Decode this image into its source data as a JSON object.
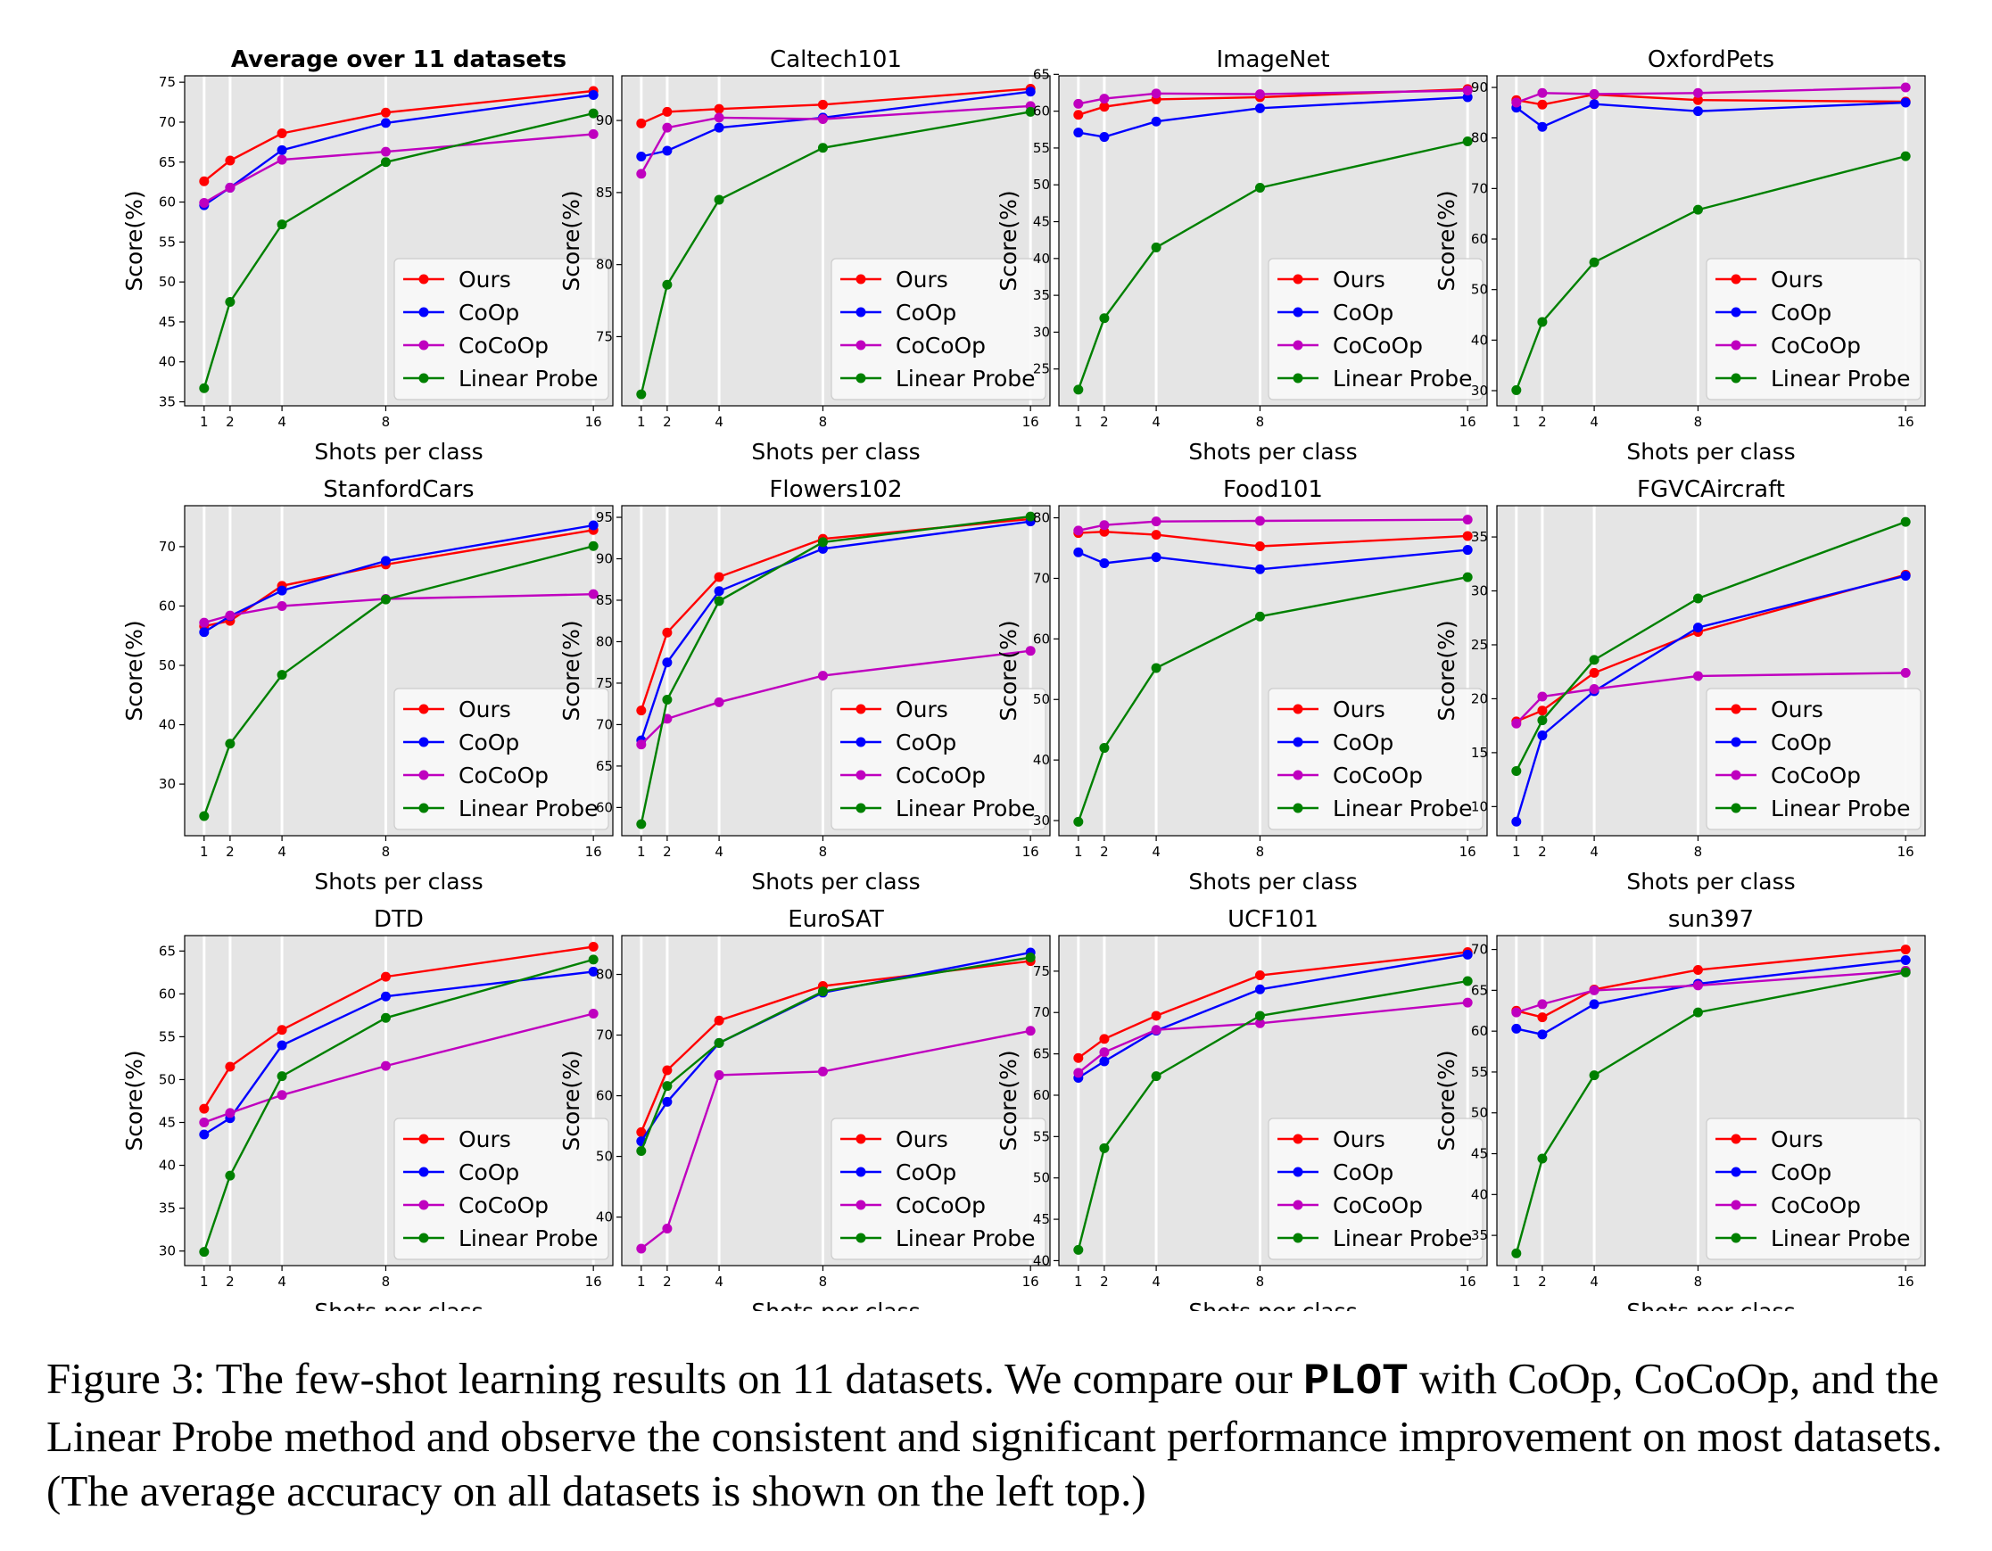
{
  "caption": {
    "pre": "Figure 3: The few-shot learning results on 11 datasets. We compare our ",
    "method": "PLOT",
    "post": " with CoOp, CoCoOp, and the Linear Probe method and observe the consistent and significant performance improvement on most datasets. (The average accuracy on all datasets is shown on the left top.)"
  },
  "colors": {
    "Ours": "#ff0000",
    "CoOp": "#0000ff",
    "CoCoOp": "#bf00bf",
    "Linear Probe": "#008000",
    "plot_bg": "#e5e5e5",
    "grid": "#ffffff"
  },
  "chart_data": [
    {
      "type": "line",
      "title": "Average over 11 datasets",
      "title_bold": true,
      "xlabel": "Shots per class",
      "ylabel": "Score(%)",
      "x": [
        1,
        2,
        4,
        8,
        16
      ],
      "ylim": [
        34.5,
        75.8
      ],
      "yticks": [
        35,
        40,
        45,
        50,
        55,
        60,
        65,
        70,
        75
      ],
      "legend": "lower-right",
      "grid": "vertical",
      "series": [
        {
          "name": "Ours",
          "values": [
            62.6,
            65.2,
            68.6,
            71.2,
            73.9
          ]
        },
        {
          "name": "CoOp",
          "values": [
            59.6,
            61.8,
            66.5,
            69.9,
            73.4
          ]
        },
        {
          "name": "CoCoOp",
          "values": [
            59.9,
            61.8,
            65.3,
            66.3,
            68.5
          ]
        },
        {
          "name": "Linear Probe",
          "values": [
            36.7,
            47.5,
            57.2,
            65.0,
            71.1
          ]
        }
      ]
    },
    {
      "type": "line",
      "title": "Caltech101",
      "title_bold": false,
      "xlabel": "Shots per class",
      "ylabel": "Score(%)",
      "x": [
        1,
        2,
        4,
        8,
        16
      ],
      "ylim": [
        70.2,
        93.1
      ],
      "yticks": [
        75,
        80,
        85,
        90
      ],
      "legend": "lower-right",
      "grid": "vertical",
      "series": [
        {
          "name": "Ours",
          "values": [
            89.8,
            90.6,
            90.8,
            91.1,
            92.2
          ]
        },
        {
          "name": "CoOp",
          "values": [
            87.5,
            87.9,
            89.5,
            90.2,
            92.0
          ]
        },
        {
          "name": "CoCoOp",
          "values": [
            86.3,
            89.5,
            90.2,
            90.1,
            91.0
          ]
        },
        {
          "name": "Linear Probe",
          "values": [
            71.0,
            78.6,
            84.5,
            88.1,
            90.6
          ]
        }
      ]
    },
    {
      "type": "line",
      "title": "ImageNet",
      "title_bold": false,
      "xlabel": "Shots per class",
      "ylabel": "Score(%)",
      "x": [
        1,
        2,
        4,
        8,
        16
      ],
      "ylim": [
        20.0,
        64.8
      ],
      "yticks": [
        25,
        30,
        35,
        40,
        45,
        50,
        55,
        60,
        65
      ],
      "legend": "lower-right",
      "grid": "vertical",
      "series": [
        {
          "name": "Ours",
          "values": [
            59.5,
            60.6,
            61.6,
            61.9,
            63.0
          ]
        },
        {
          "name": "CoOp",
          "values": [
            57.1,
            56.5,
            58.6,
            60.4,
            61.9
          ]
        },
        {
          "name": "CoCoOp",
          "values": [
            61.0,
            61.7,
            62.4,
            62.3,
            62.8
          ]
        },
        {
          "name": "Linear Probe",
          "values": [
            22.2,
            31.9,
            41.5,
            49.6,
            55.9
          ]
        }
      ]
    },
    {
      "type": "line",
      "title": "OxfordPets",
      "title_bold": false,
      "xlabel": "Shots per class",
      "ylabel": "Score(%)",
      "x": [
        1,
        2,
        4,
        8,
        16
      ],
      "ylim": [
        27.0,
        92.3
      ],
      "yticks": [
        30,
        40,
        50,
        60,
        70,
        80,
        90
      ],
      "legend": "lower-right",
      "grid": "vertical",
      "series": [
        {
          "name": "Ours",
          "values": [
            87.5,
            86.6,
            88.6,
            87.5,
            87.2
          ]
        },
        {
          "name": "CoOp",
          "values": [
            86.0,
            82.2,
            86.7,
            85.3,
            87.0
          ]
        },
        {
          "name": "CoCoOp",
          "values": [
            87.0,
            88.9,
            88.7,
            88.9,
            90.0
          ]
        },
        {
          "name": "Linear Probe",
          "values": [
            30.1,
            43.6,
            55.4,
            65.8,
            76.4
          ]
        }
      ]
    },
    {
      "type": "line",
      "title": "StanfordCars",
      "title_bold": false,
      "xlabel": "Shots per class",
      "ylabel": "Score(%)",
      "x": [
        1,
        2,
        4,
        8,
        16
      ],
      "ylim": [
        21.3,
        76.9
      ],
      "yticks": [
        30,
        40,
        50,
        60,
        70
      ],
      "legend": "lower-right",
      "grid": "vertical",
      "series": [
        {
          "name": "Ours",
          "values": [
            56.6,
            57.5,
            63.4,
            67.0,
            72.8
          ]
        },
        {
          "name": "CoOp",
          "values": [
            55.6,
            58.3,
            62.6,
            67.6,
            73.6
          ]
        },
        {
          "name": "CoCoOp",
          "values": [
            57.2,
            58.4,
            60.0,
            61.2,
            62.0
          ]
        },
        {
          "name": "Linear Probe",
          "values": [
            24.6,
            36.8,
            48.4,
            61.1,
            70.1
          ]
        }
      ]
    },
    {
      "type": "line",
      "title": "Flowers102",
      "title_bold": false,
      "xlabel": "Shots per class",
      "ylabel": "Score(%)",
      "x": [
        1,
        2,
        4,
        8,
        16
      ],
      "ylim": [
        56.6,
        96.4
      ],
      "yticks": [
        60,
        65,
        70,
        75,
        80,
        85,
        90,
        95
      ],
      "legend": "lower-right",
      "grid": "vertical",
      "series": [
        {
          "name": "Ours",
          "values": [
            71.7,
            81.1,
            87.8,
            92.4,
            94.8
          ]
        },
        {
          "name": "CoOp",
          "values": [
            68.1,
            77.5,
            86.1,
            91.2,
            94.5
          ]
        },
        {
          "name": "CoCoOp",
          "values": [
            67.6,
            70.7,
            72.7,
            75.9,
            78.9
          ]
        },
        {
          "name": "Linear Probe",
          "values": [
            58.0,
            73.0,
            84.9,
            92.0,
            95.1
          ]
        }
      ]
    },
    {
      "type": "line",
      "title": "Food101",
      "title_bold": false,
      "xlabel": "Shots per class",
      "ylabel": "Score(%)",
      "x": [
        1,
        2,
        4,
        8,
        16
      ],
      "ylim": [
        27.5,
        82.0
      ],
      "yticks": [
        30,
        40,
        50,
        60,
        70,
        80
      ],
      "legend": "lower-right",
      "grid": "vertical",
      "series": [
        {
          "name": "Ours",
          "values": [
            77.5,
            77.7,
            77.2,
            75.3,
            77.0
          ]
        },
        {
          "name": "CoOp",
          "values": [
            74.3,
            72.5,
            73.5,
            71.5,
            74.7
          ]
        },
        {
          "name": "CoCoOp",
          "values": [
            77.9,
            78.8,
            79.4,
            79.5,
            79.7
          ]
        },
        {
          "name": "Linear Probe",
          "values": [
            29.8,
            42.0,
            55.2,
            63.7,
            70.2
          ]
        }
      ]
    },
    {
      "type": "line",
      "title": "FGVCAircraft",
      "title_bold": false,
      "xlabel": "Shots per class",
      "ylabel": "Score(%)",
      "x": [
        1,
        2,
        4,
        8,
        16
      ],
      "ylim": [
        7.3,
        37.9
      ],
      "yticks": [
        10,
        15,
        20,
        25,
        30,
        35
      ],
      "legend": "lower-right",
      "grid": "vertical",
      "series": [
        {
          "name": "Ours",
          "values": [
            17.9,
            18.9,
            22.4,
            26.2,
            31.5
          ]
        },
        {
          "name": "CoOp",
          "values": [
            8.6,
            16.6,
            20.7,
            26.6,
            31.4
          ]
        },
        {
          "name": "CoCoOp",
          "values": [
            17.7,
            20.2,
            20.9,
            22.1,
            22.4
          ]
        },
        {
          "name": "Linear Probe",
          "values": [
            13.3,
            18.0,
            23.6,
            29.3,
            36.4
          ]
        }
      ]
    },
    {
      "type": "line",
      "title": "DTD",
      "title_bold": false,
      "xlabel": "Shots per class",
      "ylabel": "Score(%)",
      "x": [
        1,
        2,
        4,
        8,
        16
      ],
      "ylim": [
        28.3,
        66.8
      ],
      "yticks": [
        30,
        35,
        40,
        45,
        50,
        55,
        60,
        65
      ],
      "legend": "lower-right",
      "grid": "vertical",
      "series": [
        {
          "name": "Ours",
          "values": [
            46.6,
            51.5,
            55.8,
            62.0,
            65.5
          ]
        },
        {
          "name": "CoOp",
          "values": [
            43.6,
            45.5,
            54.0,
            59.7,
            62.6
          ]
        },
        {
          "name": "CoCoOp",
          "values": [
            45.0,
            46.1,
            48.2,
            51.6,
            57.7
          ]
        },
        {
          "name": "Linear Probe",
          "values": [
            29.9,
            38.8,
            50.4,
            57.2,
            64.0
          ]
        }
      ]
    },
    {
      "type": "line",
      "title": "EuroSAT",
      "title_bold": false,
      "xlabel": "Shots per class",
      "ylabel": "Score(%)",
      "x": [
        1,
        2,
        4,
        8,
        16
      ],
      "ylim": [
        32.0,
        86.4
      ],
      "yticks": [
        40,
        50,
        60,
        70,
        80
      ],
      "legend": "lower-right",
      "grid": "vertical",
      "series": [
        {
          "name": "Ours",
          "values": [
            54.0,
            64.2,
            72.4,
            78.1,
            82.2
          ]
        },
        {
          "name": "CoOp",
          "values": [
            52.5,
            59.0,
            68.7,
            77.0,
            83.6
          ]
        },
        {
          "name": "CoCoOp",
          "values": [
            34.8,
            38.1,
            63.4,
            64.0,
            70.7
          ]
        },
        {
          "name": "Linear Probe",
          "values": [
            50.9,
            61.6,
            68.7,
            77.2,
            82.8
          ]
        }
      ]
    },
    {
      "type": "line",
      "title": "UCF101",
      "title_bold": false,
      "xlabel": "Shots per class",
      "ylabel": "Score(%)",
      "x": [
        1,
        2,
        4,
        8,
        16
      ],
      "ylim": [
        39.4,
        79.3
      ],
      "yticks": [
        40,
        45,
        50,
        55,
        60,
        65,
        70,
        75
      ],
      "legend": "lower-right",
      "grid": "vertical",
      "series": [
        {
          "name": "Ours",
          "values": [
            64.5,
            66.8,
            69.6,
            74.5,
            77.3
          ]
        },
        {
          "name": "CoOp",
          "values": [
            62.1,
            64.1,
            67.8,
            72.8,
            77.0
          ]
        },
        {
          "name": "CoCoOp",
          "values": [
            62.7,
            65.2,
            67.9,
            68.7,
            71.2
          ]
        },
        {
          "name": "Linear Probe",
          "values": [
            41.3,
            53.6,
            62.3,
            69.6,
            73.8
          ]
        }
      ]
    },
    {
      "type": "line",
      "title": "sun397",
      "title_bold": false,
      "xlabel": "Shots per class",
      "ylabel": "Score(%)",
      "x": [
        1,
        2,
        4,
        8,
        16
      ],
      "ylim": [
        31.3,
        71.7
      ],
      "yticks": [
        35,
        40,
        45,
        50,
        55,
        60,
        65,
        70
      ],
      "legend": "lower-right",
      "grid": "vertical",
      "series": [
        {
          "name": "Ours",
          "values": [
            62.5,
            61.7,
            65.1,
            67.5,
            70.0
          ]
        },
        {
          "name": "CoOp",
          "values": [
            60.3,
            59.6,
            63.3,
            65.8,
            68.7
          ]
        },
        {
          "name": "CoCoOp",
          "values": [
            62.3,
            63.3,
            65.0,
            65.6,
            67.4
          ]
        },
        {
          "name": "Linear Probe",
          "values": [
            32.8,
            44.4,
            54.6,
            62.3,
            67.2
          ]
        }
      ]
    }
  ]
}
